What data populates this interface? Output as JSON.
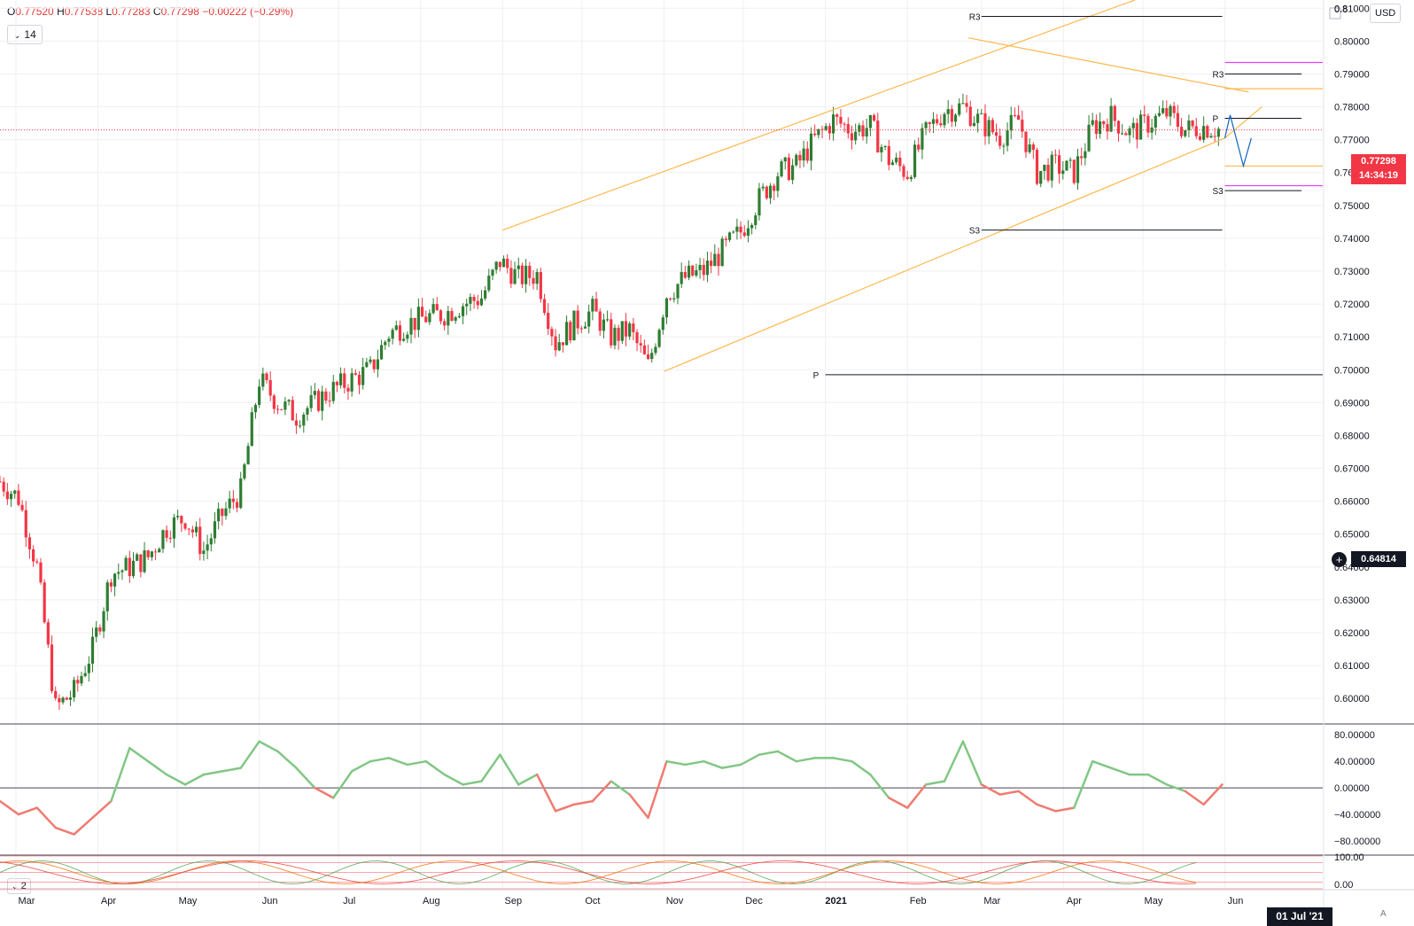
{
  "header": {
    "ohlc_o_key": "O",
    "ohlc_o": "0.77520",
    "ohlc_h_key": "H",
    "ohlc_h": "0.77538",
    "ohlc_l_key": "L",
    "ohlc_l": "0.77283",
    "ohlc_c_key": "C",
    "ohlc_c": "0.77298",
    "change": "−0.00222 (−0.29%)",
    "interval": "14",
    "indicator2_label": "2",
    "currency_button": "USD",
    "auto_label": "A"
  },
  "colors": {
    "up": "#2e7d32",
    "down": "#f23645",
    "channel": "#ffb74d",
    "osc_up": "#81c784",
    "osc_down": "#ef7b72",
    "grid": "#eef0f3",
    "pivot_magenta": "#e040fb",
    "projection": "#1565c0"
  },
  "axis_labels": {
    "price_ticks": [
      "0.81000",
      "0.80000",
      "0.79000",
      "0.78000",
      "0.77000",
      "0.76000",
      "0.75000",
      "0.74000",
      "0.73000",
      "0.72000",
      "0.71000",
      "0.70000",
      "0.69000",
      "0.68000",
      "0.67000",
      "0.66000",
      "0.65000",
      "0.64000",
      "0.63000",
      "0.62000",
      "0.61000",
      "0.60000"
    ],
    "top_partial_tick": "0.8",
    "osc_ticks": [
      "80.00000",
      "40.00000",
      "0.00000",
      "−40.00000",
      "−80.00000"
    ],
    "ind2_ticks": [
      "100.00",
      "0.00"
    ],
    "time_ticks": [
      "Mar",
      "Apr",
      "May",
      "Jun",
      "Jul",
      "Aug",
      "Sep",
      "Oct",
      "Nov",
      "Dec",
      "2021",
      "Feb",
      "Mar",
      "Apr",
      "May",
      "Jun"
    ],
    "cursor_date": "01 Jul '21",
    "last_price": "0.77298",
    "countdown": "14:34:19",
    "cursor_price": "0.64814"
  },
  "pivot_labels": {
    "r3_upper": "R3",
    "r3_lower": "R3",
    "p_main": "P",
    "p_small": "P",
    "s3_upper": "S3",
    "s3_lower": "S3"
  },
  "chart_data": {
    "type": "candlestick",
    "price_ylim": [
      0.5925,
      0.8125
    ],
    "x_range": [
      "2020-02-24",
      "2021-07-08"
    ],
    "closes": [
      [
        "2020-02-24",
        0.666
      ],
      [
        "2020-03-02",
        0.661
      ],
      [
        "2020-03-09",
        0.64
      ],
      [
        "2020-03-16",
        0.597
      ],
      [
        "2020-03-23",
        0.602
      ],
      [
        "2020-03-30",
        0.615
      ],
      [
        "2020-04-06",
        0.638
      ],
      [
        "2020-04-13",
        0.64
      ],
      [
        "2020-04-20",
        0.643
      ],
      [
        "2020-04-27",
        0.652
      ],
      [
        "2020-05-04",
        0.655
      ],
      [
        "2020-05-11",
        0.645
      ],
      [
        "2020-05-18",
        0.656
      ],
      [
        "2020-05-25",
        0.663
      ],
      [
        "2020-06-01",
        0.697
      ],
      [
        "2020-06-08",
        0.69
      ],
      [
        "2020-06-15",
        0.686
      ],
      [
        "2020-06-22",
        0.69
      ],
      [
        "2020-06-29",
        0.694
      ],
      [
        "2020-07-06",
        0.697
      ],
      [
        "2020-07-13",
        0.7
      ],
      [
        "2020-07-20",
        0.711
      ],
      [
        "2020-07-27",
        0.714
      ],
      [
        "2020-08-03",
        0.716
      ],
      [
        "2020-08-10",
        0.717
      ],
      [
        "2020-08-17",
        0.72
      ],
      [
        "2020-08-24",
        0.722
      ],
      [
        "2020-08-31",
        0.733
      ],
      [
        "2020-09-07",
        0.728
      ],
      [
        "2020-09-14",
        0.729
      ],
      [
        "2020-09-21",
        0.708
      ],
      [
        "2020-09-28",
        0.714
      ],
      [
        "2020-10-05",
        0.718
      ],
      [
        "2020-10-12",
        0.71
      ],
      [
        "2020-10-19",
        0.712
      ],
      [
        "2020-10-26",
        0.701
      ],
      [
        "2020-11-02",
        0.723
      ],
      [
        "2020-11-09",
        0.728
      ],
      [
        "2020-11-16",
        0.73
      ],
      [
        "2020-11-23",
        0.736
      ],
      [
        "2020-11-30",
        0.742
      ],
      [
        "2020-12-07",
        0.752
      ],
      [
        "2020-12-14",
        0.76
      ],
      [
        "2020-12-21",
        0.762
      ],
      [
        "2020-12-28",
        0.77
      ],
      [
        "2021-01-04",
        0.776
      ],
      [
        "2021-01-11",
        0.773
      ],
      [
        "2021-01-18",
        0.774
      ],
      [
        "2021-01-25",
        0.764
      ],
      [
        "2021-02-01",
        0.76
      ],
      [
        "2021-02-08",
        0.772
      ],
      [
        "2021-02-15",
        0.779
      ],
      [
        "2021-02-22",
        0.78
      ],
      [
        "2021-03-01",
        0.775
      ],
      [
        "2021-03-08",
        0.771
      ],
      [
        "2021-03-15",
        0.776
      ],
      [
        "2021-03-22",
        0.76
      ],
      [
        "2021-03-29",
        0.762
      ],
      [
        "2021-04-05",
        0.76
      ],
      [
        "2021-04-12",
        0.774
      ],
      [
        "2021-04-19",
        0.777
      ],
      [
        "2021-04-26",
        0.772
      ],
      [
        "2021-05-03",
        0.775
      ],
      [
        "2021-05-10",
        0.778
      ],
      [
        "2021-05-17",
        0.773
      ],
      [
        "2021-05-24",
        0.774
      ],
      [
        "2021-05-31",
        0.773
      ]
    ],
    "pivots": [
      {
        "label": "R3",
        "value": 0.8075,
        "from": "2021-03-01",
        "to": "2021-05-31"
      },
      {
        "label": "R3",
        "value": 0.79,
        "from": "2021-06-01",
        "to": "2021-06-30"
      },
      {
        "label": "P",
        "value": 0.6985,
        "from": "2021-01-01",
        "to": "2021-07-08"
      },
      {
        "label": "P",
        "value": 0.7765,
        "from": "2021-06-01",
        "to": "2021-06-30"
      },
      {
        "label": "S3",
        "value": 0.7545,
        "from": "2021-06-01",
        "to": "2021-06-30"
      },
      {
        "label": "S3",
        "value": 0.7425,
        "from": "2021-03-01",
        "to": "2021-05-31"
      }
    ],
    "levels": [
      {
        "value": 0.7935,
        "color": "#e040fb"
      },
      {
        "value": 0.7855,
        "color": "#ffb74d"
      },
      {
        "value": 0.762,
        "color": "#ffb74d"
      },
      {
        "value": 0.756,
        "color": "#e040fb"
      }
    ],
    "channel": [
      {
        "from": [
          "2020-09-01",
          0.7425
        ],
        "to": [
          "2021-04-28",
          0.8125
        ]
      },
      {
        "from": [
          "2020-11-01",
          0.6995
        ],
        "to": [
          "2021-06-01",
          0.7705
        ]
      },
      {
        "from": [
          "2021-02-24",
          0.801
        ],
        "to": [
          "2021-06-10",
          0.7845
        ]
      },
      {
        "from": [
          "2021-06-01",
          0.7705
        ],
        "to": [
          "2021-06-15",
          0.78
        ]
      }
    ],
    "oscillator": {
      "ylim": [
        -100,
        95
      ],
      "ticks": [
        80,
        40,
        0,
        -40,
        -80
      ],
      "values": [
        [
          "2020-02-24",
          -20
        ],
        [
          "2020-03-02",
          -40
        ],
        [
          "2020-03-09",
          -30
        ],
        [
          "2020-03-16",
          -60
        ],
        [
          "2020-03-23",
          -70
        ],
        [
          "2020-03-30",
          -45
        ],
        [
          "2020-04-06",
          -20
        ],
        [
          "2020-04-13",
          60
        ],
        [
          "2020-04-20",
          40
        ],
        [
          "2020-04-27",
          20
        ],
        [
          "2020-05-04",
          5
        ],
        [
          "2020-05-11",
          20
        ],
        [
          "2020-05-18",
          25
        ],
        [
          "2020-05-25",
          30
        ],
        [
          "2020-06-01",
          70
        ],
        [
          "2020-06-08",
          55
        ],
        [
          "2020-06-15",
          30
        ],
        [
          "2020-06-22",
          0
        ],
        [
          "2020-06-29",
          -15
        ],
        [
          "2020-07-06",
          25
        ],
        [
          "2020-07-13",
          40
        ],
        [
          "2020-07-20",
          45
        ],
        [
          "2020-07-27",
          35
        ],
        [
          "2020-08-03",
          40
        ],
        [
          "2020-08-10",
          20
        ],
        [
          "2020-08-17",
          5
        ],
        [
          "2020-08-24",
          10
        ],
        [
          "2020-08-31",
          50
        ],
        [
          "2020-09-07",
          5
        ],
        [
          "2020-09-14",
          20
        ],
        [
          "2020-09-21",
          -35
        ],
        [
          "2020-09-28",
          -25
        ],
        [
          "2020-10-05",
          -20
        ],
        [
          "2020-10-12",
          10
        ],
        [
          "2020-10-19",
          -10
        ],
        [
          "2020-10-26",
          -45
        ],
        [
          "2020-11-02",
          40
        ],
        [
          "2020-11-09",
          35
        ],
        [
          "2020-11-16",
          40
        ],
        [
          "2020-11-23",
          30
        ],
        [
          "2020-11-30",
          35
        ],
        [
          "2020-12-07",
          50
        ],
        [
          "2020-12-14",
          55
        ],
        [
          "2020-12-21",
          40
        ],
        [
          "2020-12-28",
          45
        ],
        [
          "2021-01-04",
          45
        ],
        [
          "2021-01-11",
          40
        ],
        [
          "2021-01-18",
          20
        ],
        [
          "2021-01-25",
          -15
        ],
        [
          "2021-02-01",
          -30
        ],
        [
          "2021-02-08",
          5
        ],
        [
          "2021-02-15",
          10
        ],
        [
          "2021-02-22",
          70
        ],
        [
          "2021-03-01",
          5
        ],
        [
          "2021-03-08",
          -10
        ],
        [
          "2021-03-15",
          -5
        ],
        [
          "2021-03-22",
          -25
        ],
        [
          "2021-03-29",
          -35
        ],
        [
          "2021-04-05",
          -30
        ],
        [
          "2021-04-12",
          40
        ],
        [
          "2021-04-19",
          30
        ],
        [
          "2021-04-26",
          20
        ],
        [
          "2021-05-03",
          20
        ],
        [
          "2021-05-10",
          5
        ],
        [
          "2021-05-17",
          -5
        ],
        [
          "2021-05-24",
          -25
        ],
        [
          "2021-05-31",
          5
        ]
      ]
    },
    "indicator2": {
      "ylim": [
        0,
        100
      ],
      "ticks": [
        100,
        0
      ]
    }
  }
}
